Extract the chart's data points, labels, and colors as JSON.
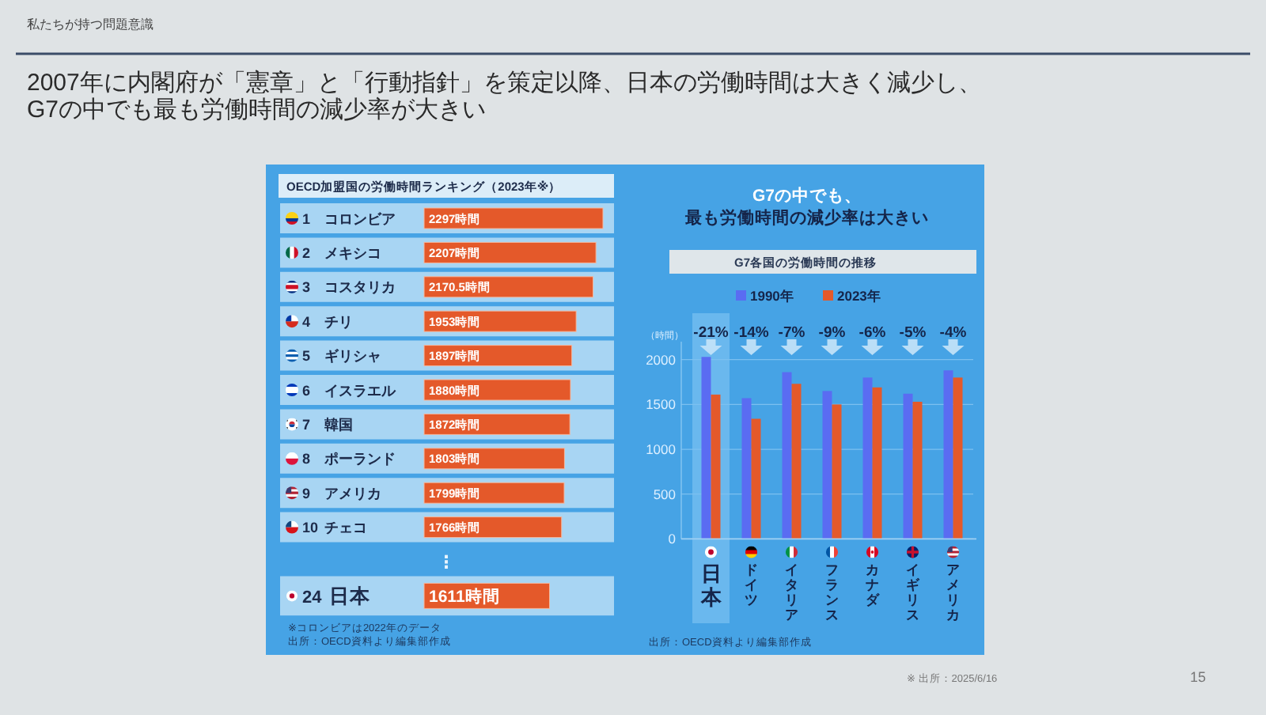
{
  "chart_data": [
    {
      "type": "other",
      "subtitle": "私たちが持つ問題意識",
      "title": "2007年に内閣府が「憲章」と「行動指針」を策定以降、日本の労働時間は大きく減少し、G7の中でも最も労働時間の減少率が大きい",
      "annotations": [
        "※ 出所：2025/6/16",
        "15"
      ]
    },
    {
      "type": "bar",
      "orientation": "horizontal",
      "title": "OECD加盟国の労働時間ランキング（2023年※）",
      "categories": [
        "1 コロンビア",
        "2 メキシコ",
        "3 コスタリカ",
        "4 チリ",
        "5 ギリシャ",
        "6 イスラエル",
        "7 韓国",
        "8 ポーランド",
        "9 アメリカ",
        "10 チェコ",
        "⋮",
        "24 日本"
      ],
      "values": [
        2297,
        2207,
        2170.5,
        1953,
        1897,
        1880,
        1872,
        1803,
        1799,
        1766,
        null,
        1611
      ],
      "value_labels": [
        "2297時間",
        "2207時間",
        "2170.5時間",
        "1953時間",
        "1897時間",
        "1880時間",
        "1872時間",
        "1803時間",
        "1799時間",
        "1766時間",
        null,
        "1611時間"
      ],
      "color": "#e4592a",
      "annotations": [
        "※コロンビアは2022年のデータ",
        "出所：OECD資料より編集部作成"
      ]
    },
    {
      "type": "bar",
      "title": "G7の中でも、最も労働時間の減少率は大きい",
      "subtitle": "G7各国の労働時間の推移",
      "ylabel": "（時間）",
      "categories": [
        "日本",
        "ドイツ",
        "イタリア",
        "フランス",
        "カナダ",
        "イギリス",
        "アメリカ"
      ],
      "series": [
        {
          "name": "1990年",
          "color": "#5a6cf2",
          "values": [
            2030,
            1570,
            1860,
            1650,
            1800,
            1620,
            1880
          ]
        },
        {
          "name": "2023年",
          "color": "#e4592a",
          "values": [
            1610,
            1340,
            1730,
            1500,
            1690,
            1530,
            1800
          ]
        }
      ],
      "ylim": [
        0,
        2200
      ],
      "yticks": [
        0,
        500,
        1000,
        1500,
        2000
      ],
      "grid": "y",
      "legend": "top",
      "bands": [
        {
          "axis": "x",
          "from": "日本",
          "to": "日本",
          "color": "#6ab8ee"
        }
      ],
      "annotations": [
        "-21%",
        "-14%",
        "-7%",
        "-9%",
        "-6%",
        "-5%",
        "-4%",
        "出所：OECD資料より編集部作成"
      ]
    }
  ]
}
